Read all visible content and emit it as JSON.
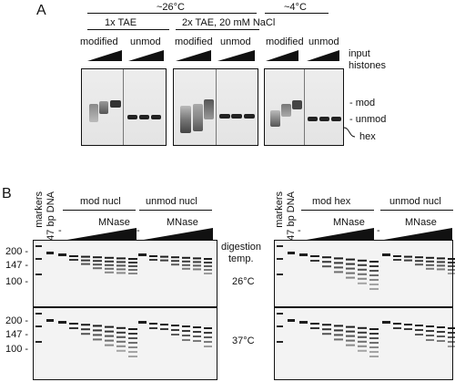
{
  "panel_a": {
    "label": "A",
    "temp_warm": "~26°C",
    "temp_cold": "~4°C",
    "buffer_1": "1x TAE",
    "buffer_2": "2x TAE, 20 mM NaCl",
    "modified": "modified",
    "unmod": "unmod",
    "input_histones_1": "input",
    "input_histones_2": "histones",
    "band_mod": "- mod",
    "band_unmod": "- unmod",
    "band_hex": "hex"
  },
  "panel_b": {
    "label": "B",
    "markers": "markers",
    "dna_147": "147 bp DNA",
    "mod_nucl": "mod nucl",
    "unmod_nucl": "unmod nucl",
    "mod_hex": "mod hex",
    "mnase": "MNase",
    "dash": "-",
    "digestion": "digestion",
    "temp_label": "temp.",
    "t26": "26°C",
    "t37": "37°C",
    "ladder": [
      "200 -",
      "147 -",
      "100 -"
    ]
  }
}
